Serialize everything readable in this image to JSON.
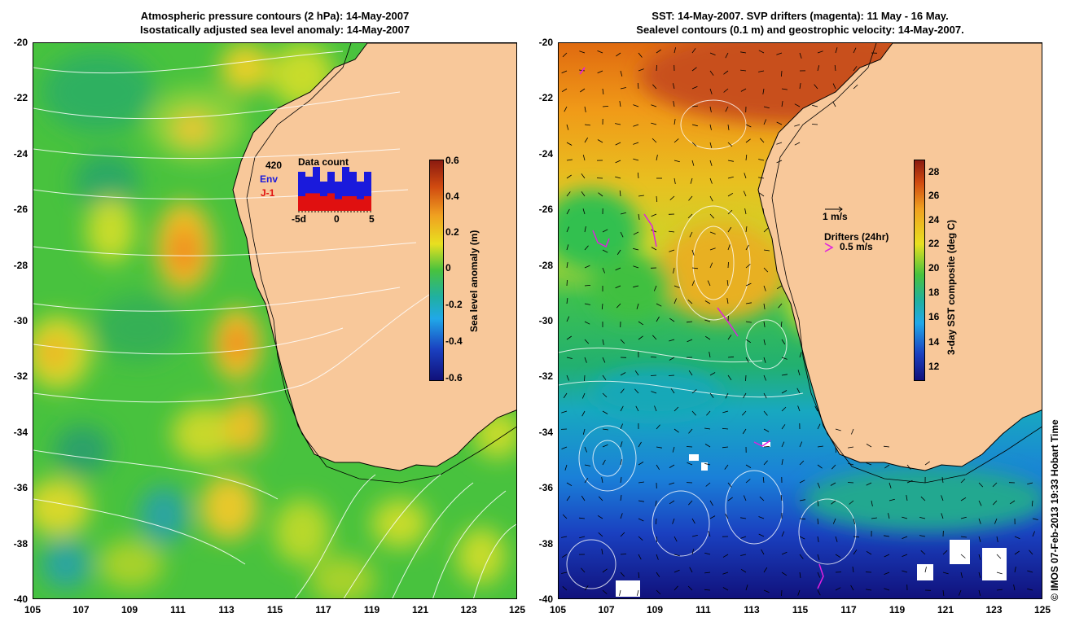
{
  "left_panel": {
    "title_line1": "Atmospheric pressure contours (2 hPa): 14-May-2007",
    "title_line2": "Isostatically adjusted sea level anomaly: 14-May-2007",
    "colorbar_label": "Sea level anomaly (m)",
    "colorbar_ticks": [
      "0.6",
      "0.4",
      "0.2",
      "0",
      "-0.2",
      "-0.4",
      "-0.6"
    ],
    "inset": {
      "title": "Data count",
      "count": "420",
      "env_label": "Env",
      "j1_label": "J-1",
      "x_ticks": [
        "-5d",
        "0",
        "5"
      ],
      "env_values": [
        8,
        7,
        9,
        6,
        8,
        6,
        9,
        8,
        6,
        8
      ],
      "j1_values": [
        5,
        6,
        6,
        5,
        6,
        4,
        5,
        5,
        4,
        5
      ]
    }
  },
  "right_panel": {
    "title_line1": "SST: 14-May-2007. SVP drifters (magenta): 11 May - 16 May.",
    "title_line2": "Sealevel contours (0.1 m) and geostrophic velocity: 14-May-2007.",
    "colorbar_label": "3-day SST composite (deg C)",
    "colorbar_ticks": [
      "28",
      "26",
      "24",
      "22",
      "20",
      "18",
      "16",
      "14",
      "12"
    ],
    "vector_scale_label": "1 m/s",
    "drifters_label": "Drifters (24hr)",
    "drifter_scale_label": "0.5 m/s"
  },
  "axes": {
    "y_ticks": [
      "-20",
      "-22",
      "-24",
      "-26",
      "-28",
      "-30",
      "-32",
      "-34",
      "-36",
      "-38",
      "-40"
    ],
    "x_ticks": [
      "105",
      "107",
      "109",
      "111",
      "113",
      "115",
      "117",
      "119",
      "121",
      "123",
      "125"
    ]
  },
  "credit": "© IMOS 07-Feb-2013 19:33 Hobart Time",
  "colors": {
    "land": "#f8c89a",
    "green": "#3cc83c",
    "magenta": "#e020e0"
  }
}
